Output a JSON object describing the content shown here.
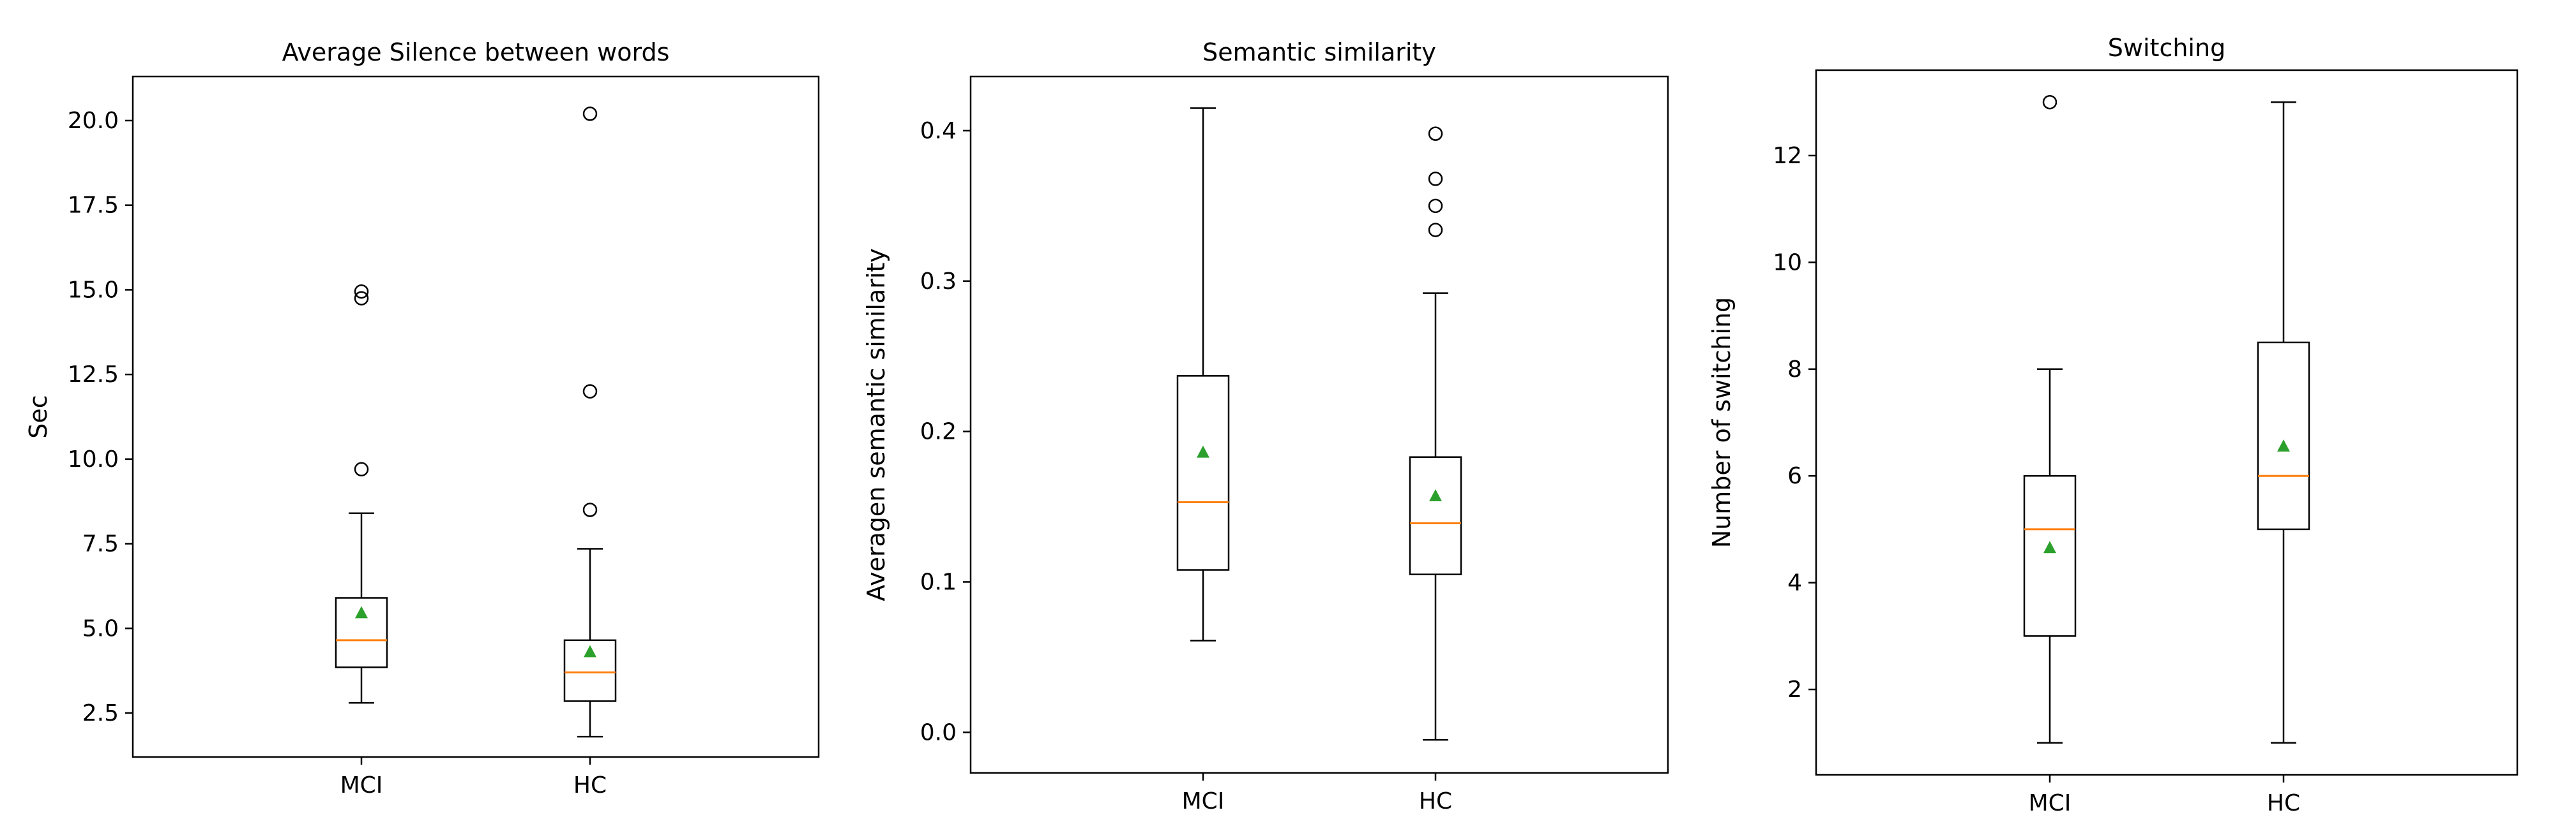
{
  "chart_data": [
    {
      "type": "box",
      "title": "Average Silence between words",
      "xlabel": "",
      "ylabel": "Sec",
      "categories": [
        "MCI",
        "HC"
      ],
      "ylim": [
        1.2,
        21.3
      ],
      "yticks": [
        "2.5",
        "5.0",
        "7.5",
        "10.0",
        "12.5",
        "15.0",
        "17.5",
        "20.0"
      ],
      "boxes": [
        {
          "category": "MCI",
          "whisker_low": 2.8,
          "q1": 3.85,
          "median": 4.65,
          "q3": 5.9,
          "whisker_high": 8.4,
          "mean": 5.45,
          "outliers": [
            9.7,
            14.75,
            14.95
          ]
        },
        {
          "category": "HC",
          "whisker_low": 1.8,
          "q1": 2.85,
          "median": 3.7,
          "q3": 4.65,
          "whisker_high": 7.35,
          "mean": 4.3,
          "outliers": [
            8.5,
            12.0,
            20.2
          ]
        }
      ],
      "colors": {
        "box": "#000000",
        "median": "#ff7f0e",
        "mean": "#2ca02c",
        "outlier": "#000000"
      }
    },
    {
      "type": "box",
      "title": "Semantic similarity",
      "xlabel": "",
      "ylabel": "Averagen semantic similarity",
      "categories": [
        "MCI",
        "HC"
      ],
      "ylim": [
        -0.027,
        0.436
      ],
      "yticks": [
        "0.0",
        "0.1",
        "0.2",
        "0.3",
        "0.4"
      ],
      "boxes": [
        {
          "category": "MCI",
          "whisker_low": 0.061,
          "q1": 0.108,
          "median": 0.153,
          "q3": 0.237,
          "whisker_high": 0.415,
          "mean": 0.186,
          "outliers": []
        },
        {
          "category": "HC",
          "whisker_low": -0.005,
          "q1": 0.105,
          "median": 0.139,
          "q3": 0.183,
          "whisker_high": 0.292,
          "mean": 0.157,
          "outliers": [
            0.334,
            0.35,
            0.368,
            0.398
          ]
        }
      ],
      "colors": {
        "box": "#000000",
        "median": "#ff7f0e",
        "mean": "#2ca02c",
        "outlier": "#000000"
      }
    },
    {
      "type": "box",
      "title": "Switching",
      "xlabel": "",
      "ylabel": "Number of switching",
      "categories": [
        "MCI",
        "HC"
      ],
      "ylim": [
        0.4,
        13.6
      ],
      "yticks": [
        "2",
        "4",
        "6",
        "8",
        "10",
        "12"
      ],
      "boxes": [
        {
          "category": "MCI",
          "whisker_low": 1,
          "q1": 3,
          "median": 5,
          "q3": 6,
          "whisker_high": 8,
          "mean": 4.65,
          "outliers": [
            13
          ]
        },
        {
          "category": "HC",
          "whisker_low": 1,
          "q1": 5,
          "median": 6,
          "q3": 8.5,
          "whisker_high": 13,
          "mean": 6.55,
          "outliers": []
        }
      ],
      "colors": {
        "box": "#000000",
        "median": "#ff7f0e",
        "mean": "#2ca02c",
        "outlier": "#000000"
      }
    }
  ]
}
